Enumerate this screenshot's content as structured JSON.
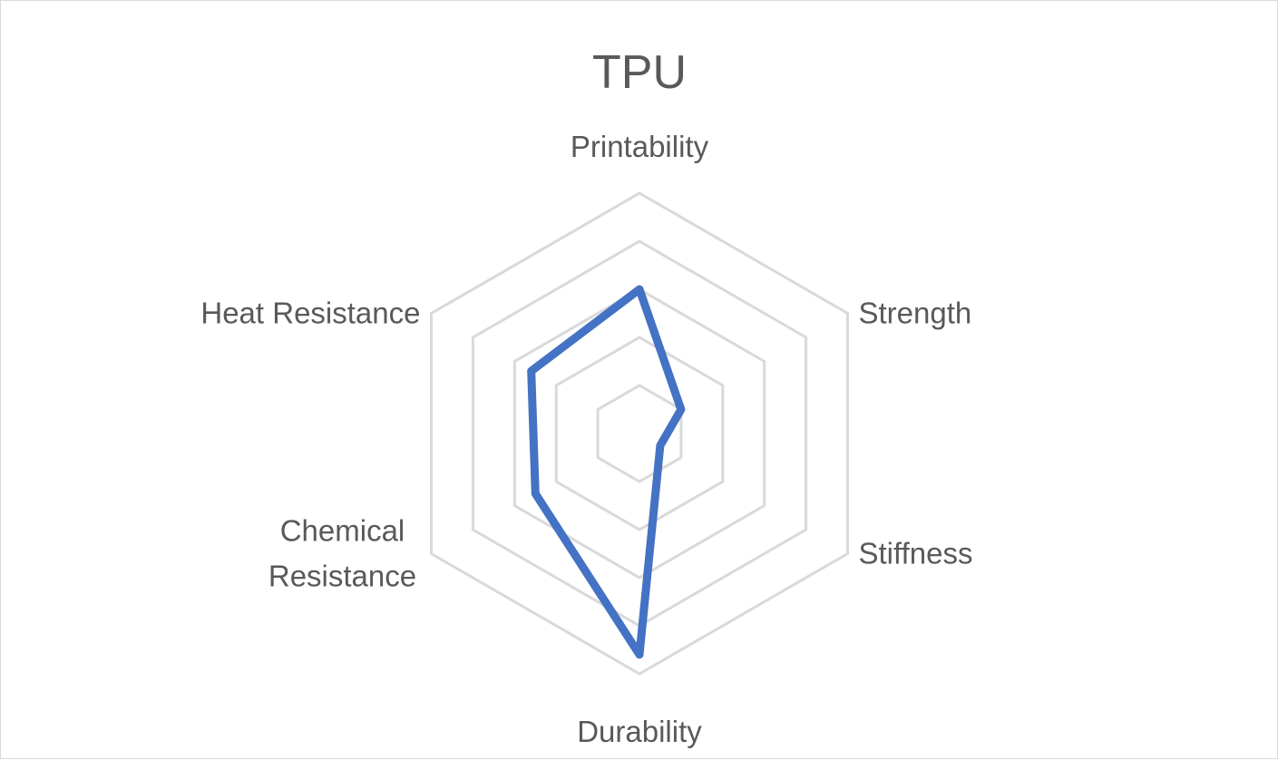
{
  "chart_data": {
    "type": "radar",
    "title": "TPU",
    "categories": [
      "Printability",
      "Strength",
      "Stiffness",
      "Durability",
      "Chemical Resistance",
      "Heat Resistance"
    ],
    "category_lines": [
      [
        "Printability"
      ],
      [
        "Strength"
      ],
      [
        "Stiffness"
      ],
      [
        "Durability"
      ],
      [
        "Chemical",
        "Resistance"
      ],
      [
        "Heat Resistance"
      ]
    ],
    "series": [
      {
        "values": [
          3,
          1,
          0.5,
          4.6,
          2.5,
          2.6
        ],
        "color": "#4472c4"
      }
    ],
    "rlim": [
      0,
      5
    ],
    "gridlines": true,
    "grid_levels": 5,
    "legend": "none"
  }
}
